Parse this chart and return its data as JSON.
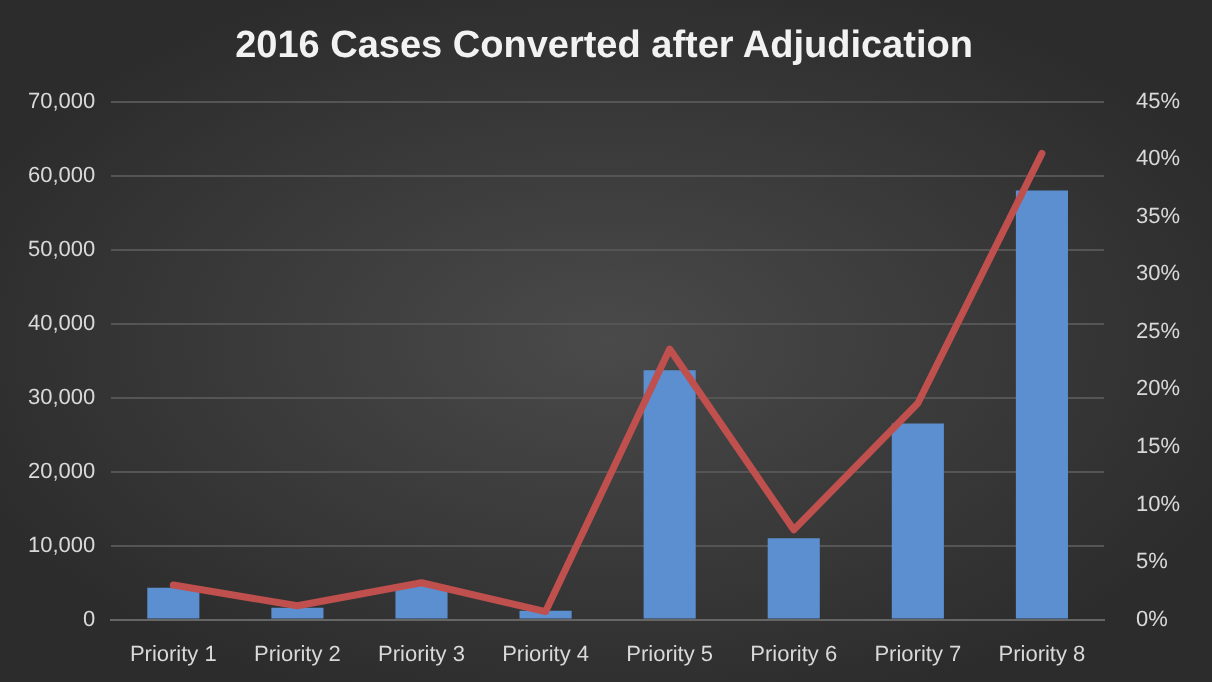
{
  "chart_data": {
    "type": "bar",
    "title": "2016 Cases Converted after Adjudication",
    "categories": [
      "Priority 1",
      "Priority 2",
      "Priority 3",
      "Priority 4",
      "Priority 5",
      "Priority 6",
      "Priority 7",
      "Priority 8"
    ],
    "series": [
      {
        "color": "#5b8fd0",
        "values": [
          4300,
          1600,
          4600,
          1200,
          33700,
          11000,
          26500,
          58000
        ]
      },
      {
        "type": "line",
        "axis": "y2",
        "color": "#c0504d",
        "values": [
          3.0,
          1.2,
          3.2,
          0.7,
          23.5,
          7.8,
          18.8,
          40.5
        ]
      }
    ],
    "ylim": [
      0,
      70000
    ],
    "yticks": [
      {
        "value": 0,
        "label": "0"
      },
      {
        "value": 10000,
        "label": "10,000"
      },
      {
        "value": 20000,
        "label": "20,000"
      },
      {
        "value": 30000,
        "label": "30,000"
      },
      {
        "value": 40000,
        "label": "40,000"
      },
      {
        "value": 50000,
        "label": "50,000"
      },
      {
        "value": 60000,
        "label": "60,000"
      },
      {
        "value": 70000,
        "label": "70,000"
      }
    ],
    "y2lim": [
      0,
      45
    ],
    "y2ticks": [
      {
        "value": 0,
        "label": "0%"
      },
      {
        "value": 5,
        "label": "5%"
      },
      {
        "value": 10,
        "label": "10%"
      },
      {
        "value": 15,
        "label": "15%"
      },
      {
        "value": 20,
        "label": "20%"
      },
      {
        "value": 25,
        "label": "25%"
      },
      {
        "value": 30,
        "label": "30%"
      },
      {
        "value": 35,
        "label": "35%"
      },
      {
        "value": 40,
        "label": "40%"
      },
      {
        "value": 45,
        "label": "45%"
      }
    ],
    "grid": "y",
    "marker": "none",
    "line_style": "solid"
  }
}
